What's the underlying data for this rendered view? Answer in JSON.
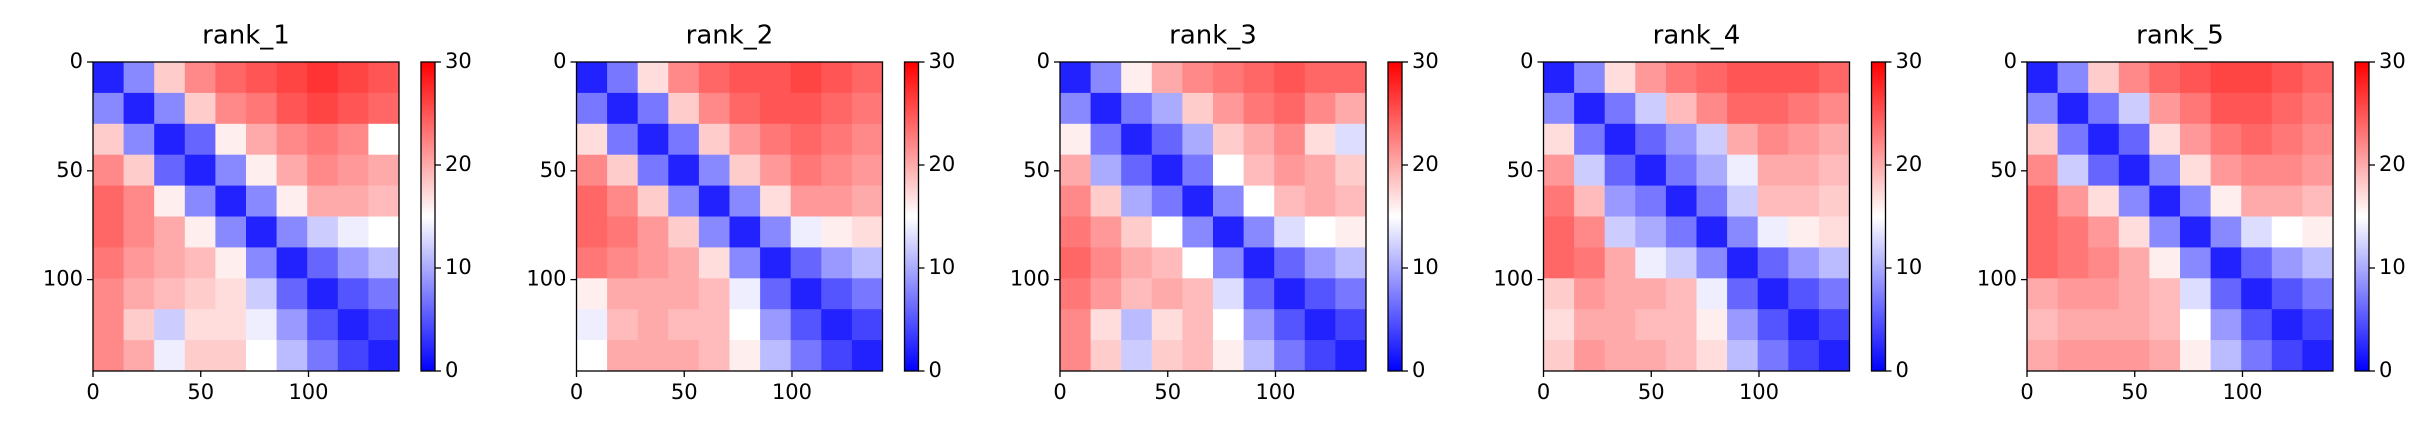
{
  "chart_data": [
    {
      "type": "heatmap",
      "title": "rank_1",
      "colormap": "bwr",
      "xlim": [
        0,
        142
      ],
      "ylim": [
        142,
        0
      ],
      "xticks": [
        0,
        50,
        100
      ],
      "yticks": [
        0,
        50,
        100
      ],
      "clim": [
        0,
        30
      ],
      "cticks": [
        0,
        10,
        20,
        30
      ],
      "z": [
        [
          2,
          8,
          18,
          22,
          24,
          25,
          26,
          27,
          26,
          25
        ],
        [
          8,
          2,
          8,
          18,
          22,
          23,
          25,
          26,
          25,
          24
        ],
        [
          18,
          8,
          2,
          6,
          16,
          20,
          22,
          23,
          22,
          15
        ],
        [
          22,
          18,
          6,
          2,
          8,
          16,
          20,
          22,
          21,
          20
        ],
        [
          24,
          22,
          16,
          8,
          2,
          8,
          16,
          20,
          20,
          19
        ],
        [
          24,
          22,
          20,
          16,
          8,
          2,
          8,
          12,
          14,
          15
        ],
        [
          23,
          21,
          20,
          19,
          16,
          8,
          2,
          6,
          9,
          11
        ],
        [
          22,
          20,
          19,
          18,
          17,
          12,
          6,
          2,
          5,
          7
        ],
        [
          22,
          18,
          12,
          17,
          17,
          14,
          9,
          5,
          2,
          4
        ],
        [
          22,
          20,
          14,
          18,
          18,
          15,
          11,
          7,
          4,
          2
        ]
      ]
    },
    {
      "type": "heatmap",
      "title": "rank_2",
      "colormap": "bwr",
      "xlim": [
        0,
        142
      ],
      "ylim": [
        142,
        0
      ],
      "xticks": [
        0,
        50,
        100
      ],
      "yticks": [
        0,
        50,
        100
      ],
      "clim": [
        0,
        30
      ],
      "cticks": [
        0,
        10,
        20,
        30
      ],
      "z": [
        [
          2,
          7,
          17,
          22,
          24,
          25,
          25,
          26,
          25,
          24
        ],
        [
          7,
          2,
          7,
          18,
          22,
          24,
          25,
          25,
          24,
          23
        ],
        [
          17,
          7,
          2,
          7,
          18,
          21,
          23,
          24,
          23,
          22
        ],
        [
          22,
          18,
          7,
          2,
          8,
          18,
          21,
          23,
          22,
          21
        ],
        [
          24,
          22,
          18,
          8,
          2,
          8,
          17,
          21,
          21,
          20
        ],
        [
          24,
          23,
          21,
          18,
          8,
          2,
          8,
          14,
          16,
          17
        ],
        [
          23,
          22,
          21,
          20,
          17,
          8,
          2,
          6,
          9,
          11
        ],
        [
          16,
          20,
          20,
          20,
          19,
          14,
          6,
          2,
          5,
          7
        ],
        [
          14,
          19,
          20,
          19,
          19,
          15,
          9,
          5,
          2,
          4
        ],
        [
          15,
          20,
          20,
          20,
          19,
          16,
          11,
          7,
          4,
          2
        ]
      ]
    },
    {
      "type": "heatmap",
      "title": "rank_3",
      "colormap": "bwr",
      "xlim": [
        0,
        142
      ],
      "ylim": [
        142,
        0
      ],
      "xticks": [
        0,
        50,
        100
      ],
      "yticks": [
        0,
        50,
        100
      ],
      "clim": [
        0,
        30
      ],
      "cticks": [
        0,
        10,
        20,
        30
      ],
      "z": [
        [
          2,
          8,
          16,
          20,
          22,
          23,
          24,
          25,
          24,
          24
        ],
        [
          8,
          2,
          7,
          10,
          18,
          21,
          23,
          24,
          22,
          20
        ],
        [
          16,
          7,
          2,
          6,
          10,
          18,
          20,
          22,
          17,
          13
        ],
        [
          20,
          10,
          6,
          2,
          7,
          15,
          19,
          21,
          20,
          18
        ],
        [
          22,
          18,
          10,
          7,
          2,
          8,
          15,
          19,
          20,
          19
        ],
        [
          23,
          21,
          18,
          15,
          8,
          2,
          8,
          13,
          15,
          16
        ],
        [
          24,
          22,
          20,
          19,
          15,
          8,
          2,
          6,
          9,
          11
        ],
        [
          23,
          21,
          19,
          20,
          19,
          13,
          6,
          2,
          5,
          7
        ],
        [
          22,
          17,
          11,
          17,
          19,
          15,
          9,
          5,
          2,
          4
        ],
        [
          22,
          18,
          12,
          18,
          19,
          16,
          11,
          7,
          4,
          2
        ]
      ]
    },
    {
      "type": "heatmap",
      "title": "rank_4",
      "colormap": "bwr",
      "xlim": [
        0,
        142
      ],
      "ylim": [
        142,
        0
      ],
      "xticks": [
        0,
        50,
        100
      ],
      "yticks": [
        0,
        50,
        100
      ],
      "clim": [
        0,
        30
      ],
      "cticks": [
        0,
        10,
        20,
        30
      ],
      "z": [
        [
          2,
          8,
          17,
          21,
          23,
          24,
          25,
          25,
          25,
          24
        ],
        [
          8,
          2,
          7,
          12,
          19,
          22,
          24,
          24,
          23,
          22
        ],
        [
          17,
          7,
          2,
          6,
          9,
          12,
          20,
          22,
          21,
          20
        ],
        [
          21,
          12,
          6,
          2,
          7,
          10,
          14,
          20,
          20,
          19
        ],
        [
          23,
          19,
          9,
          7,
          2,
          7,
          12,
          19,
          19,
          18
        ],
        [
          24,
          22,
          12,
          10,
          7,
          2,
          8,
          14,
          16,
          17
        ],
        [
          24,
          23,
          20,
          14,
          12,
          8,
          2,
          6,
          9,
          11
        ],
        [
          18,
          21,
          20,
          20,
          19,
          14,
          6,
          2,
          5,
          7
        ],
        [
          17,
          20,
          20,
          19,
          19,
          16,
          9,
          5,
          2,
          4
        ],
        [
          18,
          21,
          20,
          20,
          19,
          17,
          11,
          7,
          4,
          2
        ]
      ]
    },
    {
      "type": "heatmap",
      "title": "rank_5",
      "colormap": "bwr",
      "xlim": [
        0,
        142
      ],
      "ylim": [
        142,
        0
      ],
      "xticks": [
        0,
        50,
        100
      ],
      "yticks": [
        0,
        50,
        100
      ],
      "clim": [
        0,
        30
      ],
      "cticks": [
        0,
        10,
        20,
        30
      ],
      "z": [
        [
          2,
          8,
          18,
          22,
          24,
          25,
          26,
          26,
          25,
          24
        ],
        [
          8,
          2,
          7,
          12,
          21,
          23,
          25,
          25,
          24,
          23
        ],
        [
          18,
          7,
          2,
          6,
          17,
          21,
          23,
          24,
          23,
          22
        ],
        [
          22,
          12,
          6,
          2,
          8,
          17,
          21,
          22,
          22,
          21
        ],
        [
          24,
          21,
          17,
          8,
          2,
          8,
          16,
          20,
          20,
          19
        ],
        [
          24,
          23,
          21,
          17,
          8,
          2,
          8,
          13,
          15,
          16
        ],
        [
          24,
          23,
          22,
          20,
          16,
          8,
          2,
          6,
          9,
          11
        ],
        [
          20,
          21,
          21,
          20,
          19,
          13,
          6,
          2,
          5,
          7
        ],
        [
          19,
          20,
          20,
          20,
          19,
          15,
          9,
          5,
          2,
          4
        ],
        [
          20,
          21,
          21,
          21,
          20,
          16,
          11,
          7,
          4,
          2
        ]
      ]
    }
  ]
}
